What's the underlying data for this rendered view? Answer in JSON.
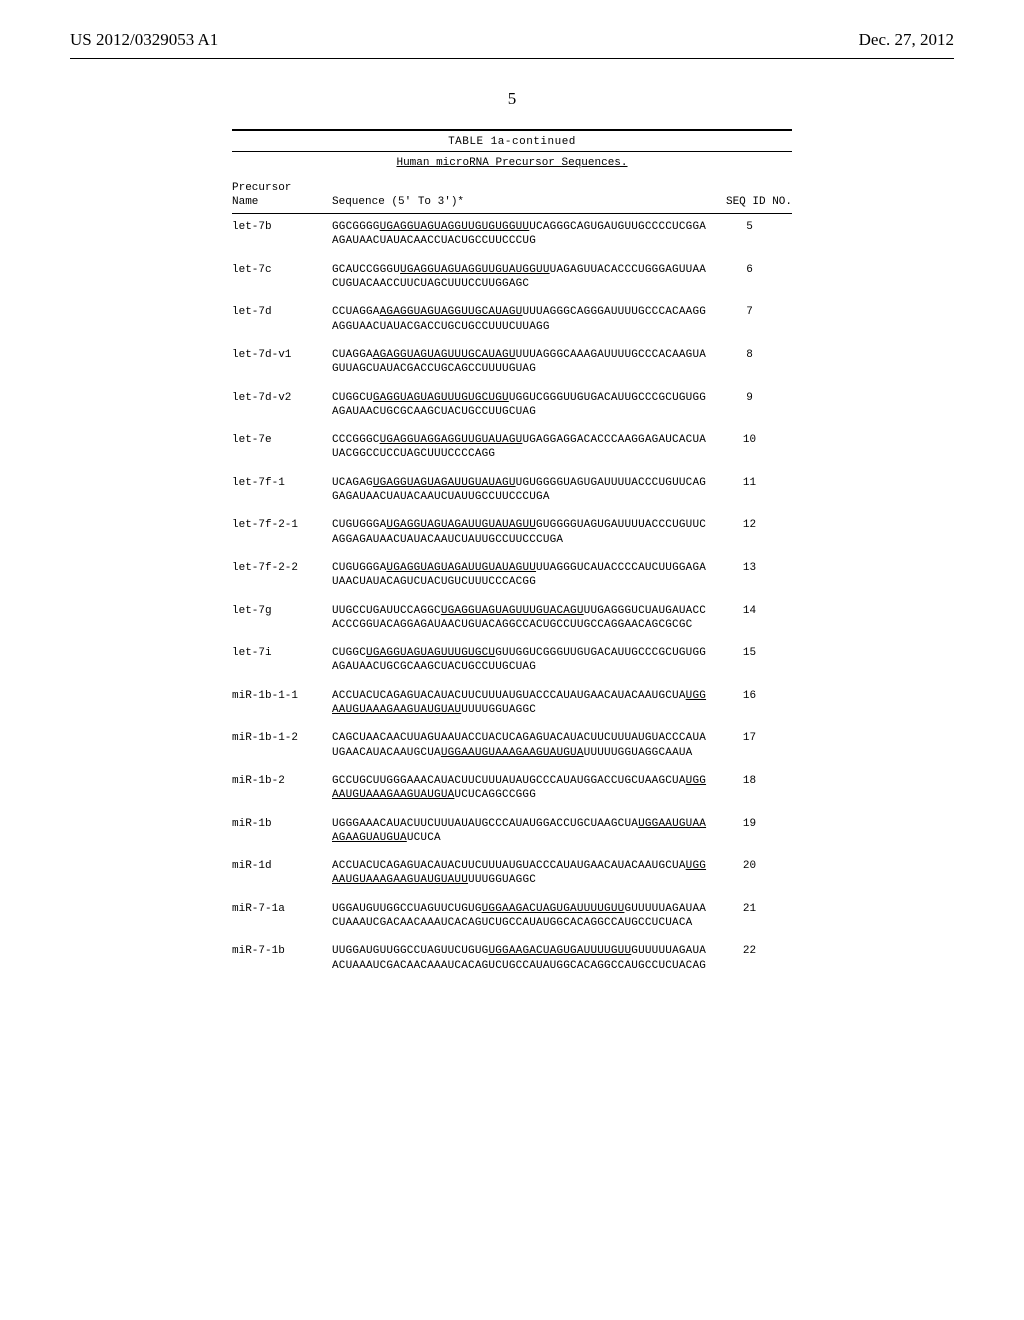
{
  "header": {
    "left": "US 2012/0329053 A1",
    "right": "Dec. 27, 2012"
  },
  "page_number": "5",
  "table": {
    "caption": "TABLE 1a-continued",
    "subtitle": "Human microRNA Precursor Sequences.",
    "col_name_line1": "Precursor",
    "col_name_line2": "Name",
    "col_seq": "Sequence (5' To 3')*",
    "col_seqid": "SEQ ID NO.",
    "rows": [
      {
        "name": "let-7b",
        "seq_parts": [
          {
            "t": "GGCGGGG",
            "u": false
          },
          {
            "t": "UGAGGUAGUAGGUUGUGUGGUU",
            "u": true
          },
          {
            "t": "UCAGGGCAGUGAUGUUGCCCCUCGGAAGAUAACUAUACAACCUACUGCCUUCCCUG",
            "u": false
          }
        ],
        "seqid": "5"
      },
      {
        "name": "let-7c",
        "seq_parts": [
          {
            "t": "GCAUCCGGGU",
            "u": false
          },
          {
            "t": "UGAGGUAGUAGGUUGUAUGGUU",
            "u": true
          },
          {
            "t": "UAGAGUUACACCCUGGGAGUUAACUGUACAACCUUCUAGCUUUCCUUGGAGC",
            "u": false
          }
        ],
        "seqid": "6"
      },
      {
        "name": "let-7d",
        "seq_parts": [
          {
            "t": "CCUAGGA",
            "u": false
          },
          {
            "t": "AGAGGUAGUAGGUUGCAUAGU",
            "u": true
          },
          {
            "t": "UUUAGGGCAGGGAUUUUGCCCACAAGGAGGUAACUAUACGACCUGCUGCCUUUCUUAGG",
            "u": false
          }
        ],
        "seqid": "7"
      },
      {
        "name": "let-7d-v1",
        "seq_parts": [
          {
            "t": "CUAGGA",
            "u": false
          },
          {
            "t": "AGAGGUAGUAGUUUGCAUAGU",
            "u": true
          },
          {
            "t": "UUUAGGGCAAAGAUUUUGCCCACAAGUAGUUAGCUAUACGACCUGCAGCCUUUUGUAG",
            "u": false
          }
        ],
        "seqid": "8"
      },
      {
        "name": "let-7d-v2",
        "seq_parts": [
          {
            "t": "CUGGCU",
            "u": false
          },
          {
            "t": "GAGGUAGUAGUUUGUGCUGU",
            "u": true
          },
          {
            "t": "UGGUCGGGUUGUGACAUUGCCCGCUGUGGAGAUAACUGCGCAAGCUACUGCCUUGCUAG",
            "u": false
          }
        ],
        "seqid": "9"
      },
      {
        "name": "let-7e",
        "seq_parts": [
          {
            "t": "CCCGGGC",
            "u": false
          },
          {
            "t": "UGAGGUAGGAGGUUGUAUAGU",
            "u": true
          },
          {
            "t": "UGAGGAGGACACCCAAGGAGAUCACUAUACGGCCUCCUAGCUUUCCCCAGG",
            "u": false
          }
        ],
        "seqid": "10"
      },
      {
        "name": "let-7f-1",
        "seq_parts": [
          {
            "t": "UCAGAG",
            "u": false
          },
          {
            "t": "UGAGGUAGUAGAUUGUAUAGU",
            "u": true
          },
          {
            "t": "UGUGGGGUAGUGAUUUUACCCUGUUCAGGAGAUAACUAUACAAUCUAUUGCCUUCCCUGA",
            "u": false
          }
        ],
        "seqid": "11"
      },
      {
        "name": "let-7f-2-1",
        "seq_parts": [
          {
            "t": "CUGUGGGA",
            "u": false
          },
          {
            "t": "UGAGGUAGUAGAUUGUAUAGUU",
            "u": true
          },
          {
            "t": "GUGGGGUAGUGAUUUUACCCUGUUCAGGAGAUAACUAUACAAUCUAUUGCCUUCCCUGA",
            "u": false
          }
        ],
        "seqid": "12"
      },
      {
        "name": "let-7f-2-2",
        "seq_parts": [
          {
            "t": "CUGUGGGA",
            "u": false
          },
          {
            "t": "UGAGGUAGUAGAUUGUAUAGUU",
            "u": true
          },
          {
            "t": "UUAGGGUCAUACCCCAUCUUGGAGAUAACUAUACAGUCUACUGUCUUUCCCACGG",
            "u": false
          }
        ],
        "seqid": "13"
      },
      {
        "name": "let-7g",
        "seq_parts": [
          {
            "t": "UUGCCUGAUUCCAGGC",
            "u": false
          },
          {
            "t": "UGAGGUAGUAGUUUGUACAGU",
            "u": true
          },
          {
            "t": "UUGAGGGUCUAUGAUACCACCCGGUACAGGAGAUAACUGUACAGGCCACUGCCUUGCCAGGAACAGCGCGC",
            "u": false
          }
        ],
        "seqid": "14"
      },
      {
        "name": "let-7i",
        "seq_parts": [
          {
            "t": "CUGGC",
            "u": false
          },
          {
            "t": "UGAGGUAGUAGUUUGUGCU",
            "u": true
          },
          {
            "t": "GUUGGUCGGGUUGUGACAUUGCCCGCUGUGGAGAUAACUGCGCAAGCUACUGCCUUGCUAG",
            "u": false
          }
        ],
        "seqid": "15"
      },
      {
        "name": "miR-1b-1-1",
        "seq_parts": [
          {
            "t": "ACCUACUCAGAGUACAUACUUCUUUAUGUACCCAUAUGAACAUACAAUGCUA",
            "u": false
          },
          {
            "t": "UGGAAUGUAAAGAAGUAUGUAU",
            "u": true
          },
          {
            "t": "UUUUGGUAGGC",
            "u": false
          }
        ],
        "seqid": "16"
      },
      {
        "name": "miR-1b-1-2",
        "seq_parts": [
          {
            "t": "CAGCUAACAACUUAGUAAUACCUACUCAGAGUACAUACUUCUUUAUGUACCCAUAUGAACAUACAAUGCUA",
            "u": false
          },
          {
            "t": "UGGAAUGUAAAGAAGUAUGUA",
            "u": true
          },
          {
            "t": "UUUUUGGUAGGCAAUA",
            "u": false
          }
        ],
        "seqid": "17"
      },
      {
        "name": "miR-1b-2",
        "seq_parts": [
          {
            "t": "GCCUGCUUGGGAAACAUACUUCUUUAUAUGCCCAUAUGGACCUGCUAAGCUA",
            "u": false
          },
          {
            "t": "UGGAAUGUAAAGAAGUAUGUA",
            "u": true
          },
          {
            "t": "UCUCAGGCCGGG",
            "u": false
          }
        ],
        "seqid": "18"
      },
      {
        "name": "miR-1b",
        "seq_parts": [
          {
            "t": "UGGGAAACAUACUUCUUUAUAUGCCCAUAUGGACCUGCUAAGCUA",
            "u": false
          },
          {
            "t": "UGGAAUGUAAAGAAGUAUGUA",
            "u": true
          },
          {
            "t": "UCUCA",
            "u": false
          }
        ],
        "seqid": "19"
      },
      {
        "name": "miR-1d",
        "seq_parts": [
          {
            "t": "ACCUACUCAGAGUACAUACUUCUUUAUGUACCCAUAUGAACAUACAAUGCUA",
            "u": false
          },
          {
            "t": "UGGAAUGUAAAGAAGUAUGUAUU",
            "u": true
          },
          {
            "t": "UUUGGUAGGC",
            "u": false
          }
        ],
        "seqid": "20"
      },
      {
        "name": "miR-7-1a",
        "seq_parts": [
          {
            "t": "UGGAUGUUGGCCUAGUUCUGUG",
            "u": false
          },
          {
            "t": "UGGAAGACUAGUGAUUUUGUU",
            "u": true
          },
          {
            "t": "GUUUUUAGAUAACUAAAUCGACAACAAAUCACAGUCUGCCAUAUGGCACAGGCCAUGCCUCUACA",
            "u": false
          }
        ],
        "seqid": "21"
      },
      {
        "name": "miR-7-1b",
        "seq_parts": [
          {
            "t": "UUGGAUGUUGGCCUAGUUCUGUG",
            "u": false
          },
          {
            "t": "UGGAAGACUAGUGAUUUUGUU",
            "u": true
          },
          {
            "t": "GUUUUUAGAUAACUAAAUCGACAACAAAUCACAGUCUGCCAUAUGGCACAGGCCAUGCCUCUACAG",
            "u": false
          }
        ],
        "seqid": "22"
      }
    ]
  }
}
